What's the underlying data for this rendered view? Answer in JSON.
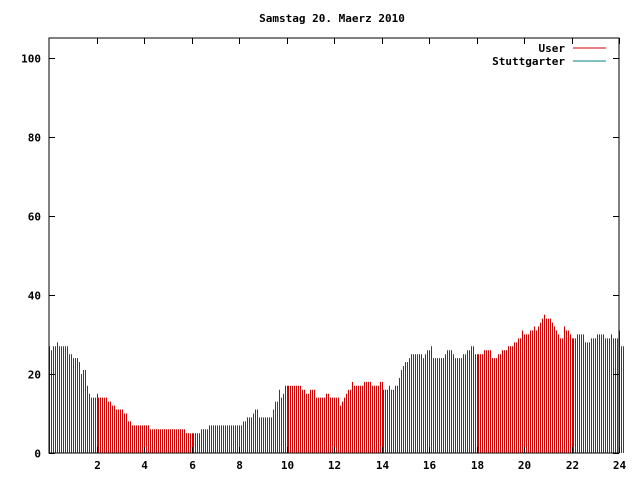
{
  "chart_data": {
    "type": "bar",
    "title": "Samstag 20. Maerz 2010",
    "xlabel": "",
    "ylabel": "",
    "xlim": [
      0,
      24
    ],
    "ylim": [
      0,
      105
    ],
    "x_ticks": [
      2,
      4,
      6,
      8,
      10,
      12,
      14,
      16,
      18,
      20,
      22,
      24
    ],
    "y_ticks": [
      0,
      20,
      40,
      60,
      80,
      100
    ],
    "grid": false,
    "legend_position": "top-right",
    "sample_interval_minutes": 5,
    "series": [
      {
        "name": "User",
        "color": "#cc0000",
        "values": [
          27,
          26,
          27,
          27,
          28,
          27,
          27,
          27,
          27,
          27,
          25,
          25,
          24,
          24,
          24,
          23,
          20,
          21,
          21,
          17,
          15,
          14,
          14,
          14,
          15,
          14,
          14,
          14,
          14,
          14,
          13,
          13,
          12,
          12,
          11,
          11,
          11,
          11,
          10,
          10,
          8,
          8,
          7,
          7,
          7,
          7,
          7,
          7,
          7,
          7,
          7,
          6,
          6,
          6,
          6,
          6,
          6,
          6,
          6,
          6,
          6,
          6,
          6,
          6,
          6,
          6,
          6,
          6,
          6,
          5,
          5,
          5,
          5,
          5,
          5,
          5,
          5,
          6,
          6,
          6,
          6,
          7,
          7,
          7,
          7,
          7,
          7,
          7,
          7,
          7,
          7,
          7,
          7,
          7,
          7,
          7,
          7,
          7,
          8,
          8,
          9,
          9,
          9,
          10,
          11,
          11,
          9,
          9,
          9,
          9,
          9,
          9,
          9,
          11,
          13,
          13,
          16,
          14,
          15,
          17,
          17,
          17,
          17,
          17,
          17,
          17,
          17,
          17,
          16,
          16,
          15,
          15,
          16,
          16,
          16,
          14,
          14,
          14,
          14,
          14,
          15,
          15,
          14,
          14,
          14,
          14,
          14,
          12,
          13,
          14,
          15,
          16,
          16,
          18,
          17,
          17,
          17,
          17,
          17,
          18,
          18,
          18,
          18,
          17,
          17,
          17,
          17,
          18,
          18,
          16,
          16,
          16,
          17,
          16,
          16,
          17,
          17,
          19,
          21,
          22,
          23,
          23,
          24,
          25,
          25,
          25,
          25,
          25,
          25,
          24,
          25,
          26,
          26,
          27,
          24,
          24,
          24,
          24,
          24,
          24,
          25,
          26,
          26,
          26,
          25,
          24,
          24,
          24,
          24,
          25,
          25,
          26,
          26,
          27,
          27,
          25,
          25,
          25,
          25,
          25,
          26,
          26,
          26,
          26,
          24,
          24,
          24,
          25,
          25,
          26,
          26,
          26,
          27,
          27,
          27,
          28,
          28,
          29,
          29,
          31,
          30,
          30,
          30,
          31,
          31,
          32,
          31,
          32,
          33,
          34,
          35,
          34,
          34,
          34,
          33,
          32,
          31,
          30,
          29,
          29,
          32,
          31,
          31,
          30,
          29,
          29,
          29,
          30,
          30,
          30,
          30,
          28,
          28,
          28,
          29,
          29,
          29,
          30,
          30,
          30,
          30,
          29,
          29,
          29,
          30,
          29,
          29,
          29,
          31,
          27,
          27
        ]
      },
      {
        "name": "Stuttgarter",
        "color": "#008080",
        "values": []
      }
    ]
  }
}
